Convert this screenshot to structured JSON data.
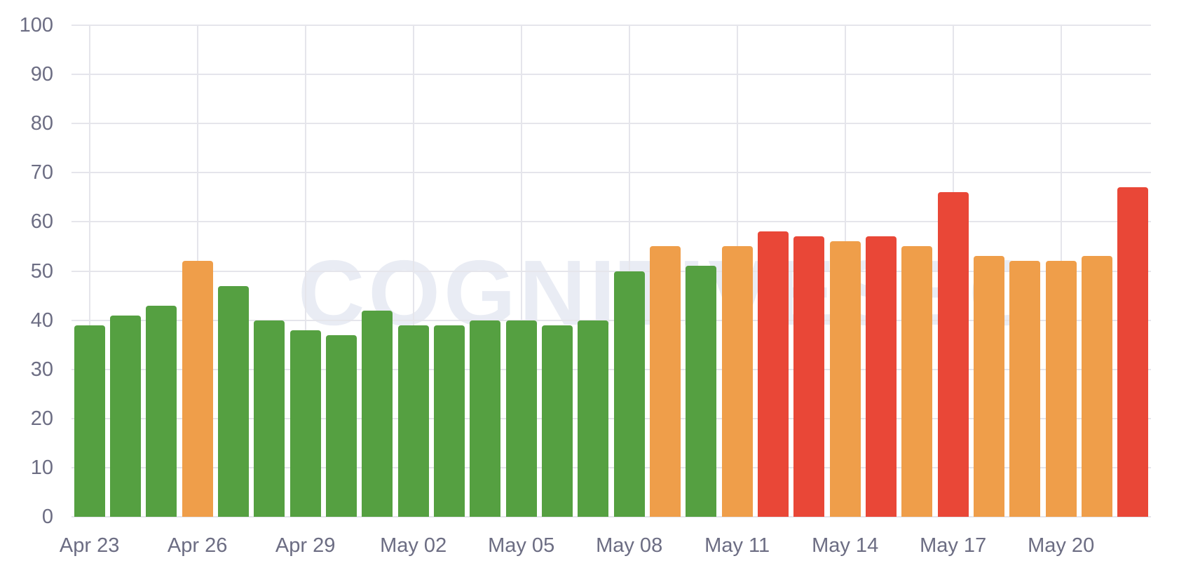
{
  "watermark": "COGNITIVESEO",
  "colors": {
    "safe_green": "#55A041",
    "warning_orange": "#EF9E4A",
    "danger_red": "#E94737",
    "axis_label": "#6C6D83",
    "gridline": "#E5E5EB",
    "watermark_color": "#E9ECF4",
    "background": "#FFFFFF"
  },
  "chart_data": {
    "type": "bar",
    "title": "",
    "xlabel": "",
    "ylabel": "",
    "ylim": [
      0,
      100
    ],
    "grid": true,
    "legend": "none",
    "y_ticks": [
      0,
      10,
      20,
      30,
      40,
      50,
      60,
      70,
      80,
      90,
      100
    ],
    "values": [
      39,
      41,
      43,
      52,
      47,
      40,
      38,
      37,
      42,
      39,
      39,
      40,
      40,
      39,
      40,
      50,
      55,
      51,
      55,
      58,
      57,
      56,
      57,
      55,
      66,
      53,
      52,
      52,
      53,
      67
    ],
    "bar_colors": [
      "green",
      "green",
      "green",
      "orange",
      "green",
      "green",
      "green",
      "green",
      "green",
      "green",
      "green",
      "green",
      "green",
      "green",
      "green",
      "green",
      "orange",
      "green",
      "orange",
      "red",
      "red",
      "orange",
      "red",
      "orange",
      "red",
      "orange",
      "orange",
      "orange",
      "orange",
      "red"
    ],
    "palette": {
      "green": "#55A041",
      "orange": "#EF9E4A",
      "red": "#E94737"
    },
    "x_labels": [
      {
        "text": "Apr 23",
        "bar_index": 0
      },
      {
        "text": "Apr 26",
        "bar_index": 3
      },
      {
        "text": "Apr 29",
        "bar_index": 6
      },
      {
        "text": "May 02",
        "bar_index": 9
      },
      {
        "text": "May 05",
        "bar_index": 12
      },
      {
        "text": "May 08",
        "bar_index": 15
      },
      {
        "text": "May 11",
        "bar_index": 18
      },
      {
        "text": "May 14",
        "bar_index": 21
      },
      {
        "text": "May 17",
        "bar_index": 24
      },
      {
        "text": "May 20",
        "bar_index": 27
      }
    ]
  },
  "layout_hints": {
    "x_label_every_n_bars": 3,
    "vertical_gridlines_at_labeled_bars": true
  }
}
